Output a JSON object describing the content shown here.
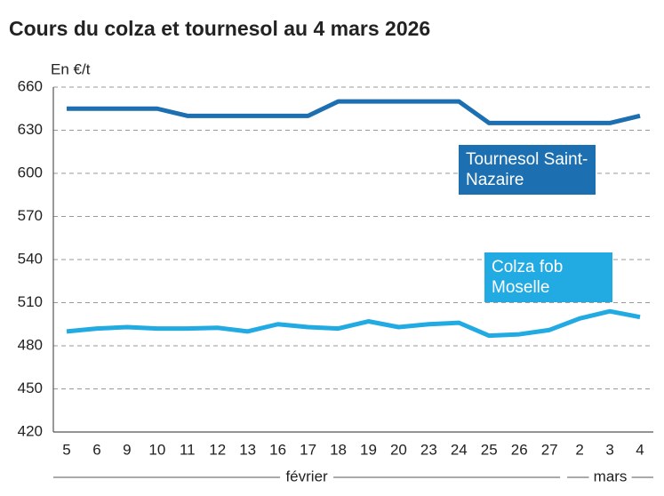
{
  "chart_data": {
    "type": "line",
    "title": "Cours du colza et tournesol au 4 mars 2026",
    "y_label": "En €/t",
    "categories": [
      "5",
      "6",
      "9",
      "10",
      "11",
      "12",
      "13",
      "16",
      "17",
      "18",
      "19",
      "20",
      "23",
      "24",
      "25",
      "26",
      "27",
      "2",
      "3",
      "4"
    ],
    "months": [
      "février",
      "mars"
    ],
    "series": [
      {
        "name": "Tournesol Saint-Nazaire",
        "color": "#1c6fb0",
        "values": [
          645,
          645,
          645,
          645,
          640,
          640,
          640,
          640,
          640,
          650,
          650,
          650,
          650,
          650,
          635,
          635,
          635,
          635,
          635,
          640
        ]
      },
      {
        "name": "Colza fob Moselle",
        "color": "#22aae3",
        "values": [
          490,
          492,
          493,
          492,
          492,
          492.5,
          490,
          495,
          493,
          492,
          497,
          493,
          495,
          496,
          487,
          488,
          491,
          499,
          504,
          500
        ]
      }
    ],
    "ylim": [
      420,
      660
    ],
    "yticks": [
      420,
      450,
      480,
      510,
      540,
      570,
      600,
      630,
      660
    ],
    "grid": true
  }
}
